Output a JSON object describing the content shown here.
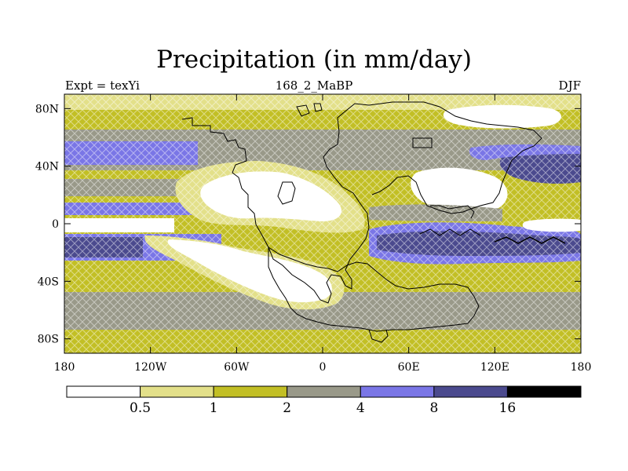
{
  "title": "Precipitation (in mm/day)",
  "left_label": "Expt = texYi",
  "center_label": "168_2_MaBP",
  "right_label": "DJF",
  "colors": {
    "lt05": "#ffffff",
    "c05_1": "#e3e08a",
    "c1_2": "#c2bf25",
    "c2_4": "#999989",
    "c4_8": "#7a76e6",
    "c8_16": "#4b4a8e",
    "gt16": "#000000",
    "frame": "#000000"
  },
  "chart_data": {
    "type": "heatmap",
    "variable": "Precipitation (in mm/day)",
    "x_ticks": [
      "180",
      "120W",
      "60W",
      "0",
      "60E",
      "120E",
      "180"
    ],
    "x_tick_values": [
      -180,
      -120,
      -60,
      0,
      60,
      120,
      180
    ],
    "y_ticks": [
      "80N",
      "40N",
      "0",
      "40S",
      "80S"
    ],
    "y_tick_values": [
      80,
      40,
      0,
      -40,
      -80
    ],
    "xlim": [
      -180,
      180
    ],
    "ylim": [
      -90,
      90
    ],
    "colorbar": {
      "levels": [
        "0.5",
        "1",
        "2",
        "4",
        "8",
        "16"
      ],
      "level_values": [
        0.5,
        1,
        2,
        4,
        8,
        16
      ],
      "colors": [
        "#ffffff",
        "#e3e08a",
        "#c2bf25",
        "#999989",
        "#7a76e6",
        "#4b4a8e",
        "#000000"
      ]
    }
  }
}
